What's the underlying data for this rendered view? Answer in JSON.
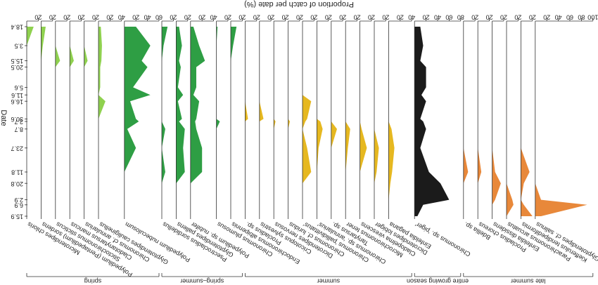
{
  "chart_data": {
    "type": "stratigraphic",
    "title": "Proportion of catch per date (%)",
    "y_label": "Date",
    "categories": [
      "18.4",
      "3.5",
      "15.5",
      "20.5",
      "5.6",
      "11.6",
      "16.6",
      "30.6",
      "2.7",
      "8.7",
      "23.7",
      "11.8",
      "20.8",
      "2.9",
      "6.9",
      "15.9"
    ],
    "groups": [
      {
        "label": "spring",
        "series": [
          {
            "name": "Microtendipes chloris",
            "color": "#8fd14f",
            "xlim": [
              0,
              20
            ],
            "xticks": [
              20
            ],
            "values": [
              12,
              0,
              0,
              0,
              0,
              0,
              0,
              0,
              0,
              0,
              0,
              0,
              0,
              0,
              0,
              0
            ]
          },
          {
            "name": "Polypedilum (Pentapedilum) sordens",
            "color": "#8fd14f",
            "xlim": [
              0,
              20
            ],
            "xticks": [
              20
            ],
            "values": [
              8,
              3,
              0,
              0,
              0,
              0,
              0,
              0,
              0,
              0,
              0,
              0,
              0,
              0,
              0,
              0
            ]
          },
          {
            "name": "Stictochironomus sticticus",
            "color": "#8fd14f",
            "xlim": [
              0,
              20
            ],
            "xticks": [
              20
            ],
            "values": [
              0,
              0,
              8,
              0,
              0,
              0,
              0,
              0,
              0,
              0,
              0,
              0,
              0,
              0,
              0,
              0
            ]
          },
          {
            "name": "Cladotanytarsus mancus",
            "color": "#8fd14f",
            "xlim": [
              0,
              20
            ],
            "xticks": [
              20
            ],
            "values": [
              0,
              0,
              7,
              0,
              0,
              0,
              0,
              0,
              0,
              0,
              0,
              0,
              0,
              0,
              0,
              0
            ]
          },
          {
            "name": "Chironomus cf. annularius",
            "color": "#8fd14f",
            "xlim": [
              0,
              20
            ],
            "xticks": [
              20
            ],
            "values": [
              0,
              0,
              6,
              0,
              0,
              0,
              0,
              0,
              0,
              0,
              0,
              0,
              0,
              0,
              0,
              0
            ]
          },
          {
            "name": "Glyptotendipes cauliginellus",
            "color": "#8fd14f",
            "xlim": [
              0,
              40
            ],
            "xticks": [
              20,
              40
            ],
            "values": [
              4,
              6,
              5,
              3,
              3,
              0,
              12,
              0,
              0,
              0,
              0,
              0,
              0,
              0,
              0,
              0
            ]
          },
          {
            "name": "Polypedilum nubeculosum",
            "color": "#2e9e44",
            "xlim": [
              0,
              60
            ],
            "xticks": [
              20,
              40,
              60
            ],
            "values": [
              20,
              45,
              30,
              40,
              15,
              45,
              10,
              20,
              25,
              5,
              20,
              0,
              0,
              0,
              0,
              0
            ]
          }
        ]
      },
      {
        "label": "spring–summer",
        "series": [
          {
            "name": "Psectrocladius sordidellus",
            "color": "#2e9e44",
            "xlim": [
              0,
              20
            ],
            "xticks": [
              20
            ],
            "values": [
              10,
              3,
              0,
              0,
              0,
              0,
              0,
              0,
              0,
              6,
              0,
              6,
              0,
              0,
              0,
              0
            ]
          },
          {
            "name": "Glyptotendipes pallens",
            "color": "#2e9e44",
            "xlim": [
              0,
              20
            ],
            "xticks": [
              20
            ],
            "values": [
              5,
              10,
              5,
              8,
              3,
              12,
              3,
              10,
              5,
              15,
              12,
              15,
              0,
              0,
              0,
              0
            ]
          },
          {
            "name": "Polypedilum sp. nubifer",
            "color": "#2e9e44",
            "xlim": [
              0,
              40
            ],
            "xticks": [
              20,
              40
            ],
            "values": [
              5,
              15,
              25,
              10,
              10,
              5,
              15,
              10,
              8,
              10,
              20,
              20,
              0,
              0,
              0,
              0
            ]
          },
          {
            "name": "Chironomus plumosus",
            "color": "#2e9e44",
            "xlim": [
              0,
              20
            ],
            "xticks": [
              20
            ],
            "values": [
              2,
              0,
              0,
              0,
              0,
              0,
              0,
              0,
              6,
              0,
              0,
              0,
              0,
              0,
              0,
              0
            ]
          },
          {
            "name": "Endochironomus albipennis",
            "color": "#2e9e44",
            "xlim": [
              0,
              20
            ],
            "xticks": [
              20
            ],
            "values": [
              10,
              4,
              0,
              0,
              0,
              0,
              0,
              0,
              0,
              0,
              0,
              0,
              0,
              0,
              0,
              0
            ]
          }
        ]
      },
      {
        "label": "summer",
        "series": [
          {
            "name": "Procladius sp.",
            "color": "#e6b820",
            "xlim": [
              0,
              20
            ],
            "xticks": [
              20
            ],
            "values": [
              0,
              0,
              0,
              0,
              0,
              0,
              0,
              5,
              0,
              0,
              0,
              0,
              0,
              0,
              0,
              0
            ]
          },
          {
            "name": "Cricotopus sylvestris",
            "color": "#e6b820",
            "xlim": [
              0,
              20
            ],
            "xticks": [
              20
            ],
            "values": [
              0,
              0,
              0,
              0,
              0,
              0,
              0,
              7,
              0,
              0,
              0,
              0,
              0,
              0,
              0,
              0
            ]
          },
          {
            "name": "Dicrotendipes nervosus",
            "color": "#e6b820",
            "xlim": [
              0,
              20
            ],
            "xticks": [
              20
            ],
            "values": [
              0,
              0,
              0,
              0,
              0,
              0,
              0,
              0,
              3,
              0,
              0,
              0,
              0,
              0,
              0,
              0
            ]
          },
          {
            "name": "Chironomus cf. luridus",
            "color": "#e6b820",
            "xlim": [
              0,
              20
            ],
            "xticks": [
              20
            ],
            "values": [
              0,
              0,
              0,
              0,
              0,
              0,
              0,
              0,
              3,
              0,
              0,
              0,
              0,
              0,
              0,
              0
            ]
          },
          {
            "name": "Chironomus 'pallidivittatus'",
            "color": "#e6b820",
            "xlim": [
              0,
              20
            ],
            "xticks": [
              20
            ],
            "values": [
              0,
              0,
              0,
              0,
              0,
              0,
              15,
              8,
              5,
              0,
              8,
              15,
              0,
              0,
              0,
              0
            ]
          },
          {
            "name": "Chironomus sp. 'annularius'",
            "color": "#e6b820",
            "xlim": [
              0,
              20
            ],
            "xticks": [
              20
            ],
            "values": [
              0,
              0,
              0,
              0,
              0,
              0,
              0,
              0,
              6,
              10,
              3,
              0,
              0,
              0,
              0,
              0
            ]
          },
          {
            "name": "Tanytarsus sp.",
            "color": "#e6b820",
            "xlim": [
              0,
              20
            ],
            "xticks": [
              20
            ],
            "values": [
              0,
              0,
              0,
              0,
              0,
              0,
              0,
              0,
              0,
              10,
              0,
              0,
              0,
              0,
              0,
              0
            ]
          },
          {
            "name": "Microchironomus tener",
            "color": "#e6b820",
            "xlim": [
              0,
              20
            ],
            "xticks": [
              20
            ],
            "values": [
              0,
              0,
              0,
              0,
              0,
              0,
              0,
              0,
              0,
              8,
              4,
              0,
              0,
              0,
              0,
              0
            ]
          },
          {
            "name": "Cladopelma virescens",
            "color": "#e6b820",
            "xlim": [
              0,
              20
            ],
            "xticks": [
              20
            ],
            "values": [
              0,
              0,
              0,
              0,
              0,
              0,
              0,
              0,
              0,
              3,
              12,
              0,
              0,
              0,
              0,
              0
            ]
          },
          {
            "name": "Dicrotendipes lobiger",
            "color": "#e6b820",
            "xlim": [
              0,
              20
            ],
            "xticks": [
              20
            ],
            "values": [
              0,
              0,
              0,
              0,
              0,
              0,
              0,
              0,
              0,
              0,
              8,
              4,
              0,
              0,
              0,
              0
            ]
          },
          {
            "name": "Einfeldia pagana",
            "color": "#e6b820",
            "xlim": [
              0,
              40
            ],
            "xticks": [
              20,
              40
            ],
            "values": [
              0,
              0,
              0,
              0,
              0,
              0,
              0,
              0,
              0,
              5,
              10,
              6,
              3,
              0,
              0,
              0
            ]
          }
        ]
      },
      {
        "label": "entire growing season",
        "series": [
          {
            "name": "Chironomus sp. 'piger'",
            "color": "#1b1b1b",
            "xlim": [
              0,
              80
            ],
            "xticks": [
              20,
              40,
              60,
              80
            ],
            "values": [
              10,
              15,
              10,
              20,
              20,
              12,
              20,
              10,
              15,
              20,
              10,
              25,
              45,
              60,
              15,
              5
            ]
          }
        ]
      },
      {
        "label": "late summer",
        "series": [
          {
            "name": "Bdellia sp.",
            "color": "#e8883a",
            "xlim": [
              0,
              20
            ],
            "xticks": [
              20
            ],
            "values": [
              0,
              0,
              0,
              0,
              0,
              0,
              0,
              0,
              0,
              0,
              0,
              8,
              0,
              0,
              0,
              0
            ]
          },
          {
            "name": "Procladius choreus",
            "color": "#e8883a",
            "xlim": [
              0,
              20
            ],
            "xticks": [
              20
            ],
            "values": [
              0,
              0,
              0,
              0,
              0,
              0,
              0,
              0,
              0,
              0,
              0,
              6,
              0,
              0,
              0,
              0
            ]
          },
          {
            "name": "Einfeldia dissidens",
            "color": "#e8883a",
            "xlim": [
              0,
              20
            ],
            "xticks": [
              20
            ],
            "values": [
              0,
              0,
              0,
              0,
              0,
              0,
              0,
              0,
              0,
              0,
              0,
              5,
              15,
              5,
              0,
              0
            ]
          },
          {
            "name": "Parachironomus arcuatus",
            "color": "#e8883a",
            "xlim": [
              0,
              20
            ],
            "xticks": [
              20
            ],
            "values": [
              0,
              0,
              0,
              0,
              0,
              0,
              0,
              0,
              0,
              0,
              0,
              0,
              0,
              10,
              12,
              0
            ]
          },
          {
            "name": "Kiefferulus tendipediformis",
            "color": "#e8883a",
            "xlim": [
              0,
              20
            ],
            "xticks": [
              20
            ],
            "values": [
              0,
              0,
              0,
              0,
              0,
              0,
              0,
              0,
              0,
              0,
              0,
              15,
              5,
              0,
              5,
              20
            ]
          },
          {
            "name": "Glyptotendipes cf. salinus",
            "color": "#e8883a",
            "xlim": [
              0,
              100
            ],
            "xticks": [
              20,
              40,
              60,
              80,
              100
            ],
            "values": [
              0,
              0,
              0,
              0,
              0,
              0,
              0,
              0,
              0,
              0,
              0,
              0,
              0,
              10,
              90,
              10
            ]
          }
        ]
      }
    ]
  }
}
